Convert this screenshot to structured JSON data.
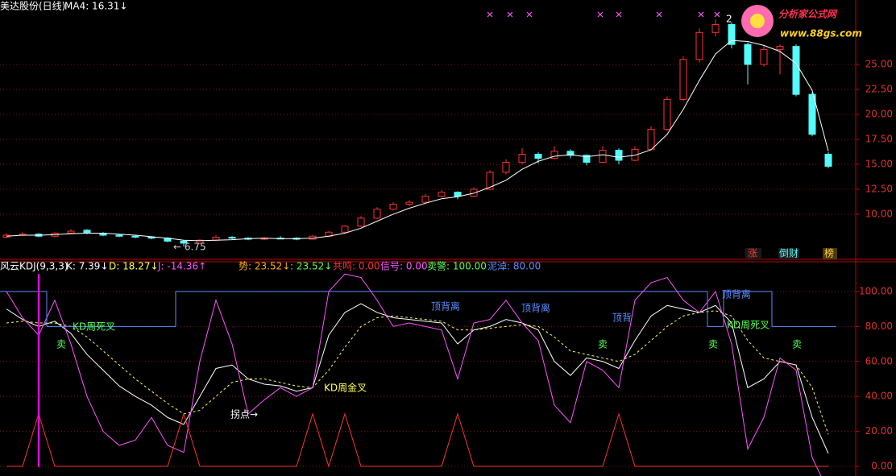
{
  "chart_data": [
    {
      "type": "candlestick",
      "title": "美达股份(日线)",
      "header_labels": [
        "MA4: 16.31↓"
      ],
      "up_color": "#ff3232",
      "down_color": "#54fcfc",
      "ma_color": "#ffffff",
      "ylim": [
        5.48,
        31.45
      ],
      "yticks": [
        {
          "value": 10,
          "label": "10.00"
        },
        {
          "value": 12.5,
          "label": "12.50"
        },
        {
          "value": 15,
          "label": "15.00"
        },
        {
          "value": 17.5,
          "label": "17.50"
        },
        {
          "value": 20,
          "label": "20.00"
        },
        {
          "value": 22.5,
          "label": "22.50"
        },
        {
          "value": 25,
          "label": "25.00"
        }
      ],
      "grid": true,
      "ohlc": [
        [
          7.7,
          8.1,
          7.6,
          7.9
        ],
        [
          7.9,
          8.2,
          7.8,
          8.0
        ],
        [
          8.0,
          8.1,
          7.7,
          7.8
        ],
        [
          7.8,
          8.2,
          7.7,
          8.1
        ],
        [
          8.1,
          8.5,
          8.0,
          8.3
        ],
        [
          8.4,
          8.5,
          8.0,
          8.1
        ],
        [
          8.1,
          8.2,
          7.8,
          7.9
        ],
        [
          7.9,
          8.0,
          7.7,
          7.8
        ],
        [
          7.8,
          7.9,
          7.6,
          7.7
        ],
        [
          7.7,
          7.8,
          7.5,
          7.6
        ],
        [
          7.6,
          7.7,
          7.2,
          7.3
        ],
        [
          7.3,
          7.4,
          6.75,
          7.1
        ],
        [
          7.1,
          7.5,
          7.0,
          7.4
        ],
        [
          7.4,
          7.9,
          7.3,
          7.7
        ],
        [
          7.7,
          7.8,
          7.5,
          7.6
        ],
        [
          7.6,
          7.7,
          7.4,
          7.5
        ],
        [
          7.5,
          7.7,
          7.4,
          7.6
        ],
        [
          7.6,
          7.8,
          7.5,
          7.55
        ],
        [
          7.6,
          7.7,
          7.4,
          7.5
        ],
        [
          7.5,
          7.9,
          7.5,
          7.8
        ],
        [
          7.8,
          8.3,
          7.7,
          8.2
        ],
        [
          8.2,
          8.9,
          8.1,
          8.8
        ],
        [
          8.8,
          9.8,
          8.7,
          9.6
        ],
        [
          9.6,
          10.7,
          9.5,
          10.5
        ],
        [
          10.5,
          11.2,
          10.4,
          11.0
        ],
        [
          11.0,
          11.4,
          10.8,
          11.2
        ],
        [
          11.2,
          12.0,
          11.0,
          11.8
        ],
        [
          11.8,
          12.4,
          11.7,
          12.2
        ],
        [
          12.2,
          12.3,
          11.5,
          11.8
        ],
        [
          11.8,
          12.7,
          11.7,
          12.5
        ],
        [
          12.5,
          14.4,
          12.4,
          14.2
        ],
        [
          14.2,
          15.5,
          14.0,
          15.2
        ],
        [
          15.2,
          16.6,
          15.0,
          16.0
        ],
        [
          16.0,
          16.2,
          15.1,
          15.6
        ],
        [
          15.6,
          16.8,
          15.5,
          16.3
        ],
        [
          16.3,
          16.5,
          15.6,
          15.9
        ],
        [
          15.9,
          16.0,
          14.9,
          15.2
        ],
        [
          15.2,
          16.8,
          15.1,
          16.4
        ],
        [
          16.4,
          16.6,
          15.0,
          15.4
        ],
        [
          15.4,
          16.8,
          15.3,
          16.5
        ],
        [
          16.5,
          18.8,
          16.4,
          18.5
        ],
        [
          18.5,
          21.8,
          18.3,
          21.5
        ],
        [
          21.5,
          25.8,
          21.3,
          25.5
        ],
        [
          25.5,
          28.6,
          25.2,
          28.2
        ],
        [
          28.2,
          29.5,
          27.8,
          29.0
        ],
        [
          29.0,
          29.2,
          26.6,
          27.0
        ],
        [
          27.0,
          27.2,
          23.0,
          25.0
        ],
        [
          25.0,
          26.9,
          24.8,
          26.5
        ],
        [
          26.5,
          27.0,
          24.0,
          26.8
        ],
        [
          26.8,
          27.0,
          21.8,
          22.0
        ],
        [
          22.0,
          22.2,
          17.8,
          18.0
        ],
        [
          16.0,
          16.2,
          14.6,
          14.8
        ]
      ],
      "ma": [
        7.8,
        7.9,
        7.9,
        7.95,
        8.05,
        8.1,
        8.1,
        8.0,
        7.9,
        7.75,
        7.6,
        7.4,
        7.35,
        7.4,
        7.45,
        7.55,
        7.6,
        7.55,
        7.55,
        7.6,
        7.8,
        8.1,
        8.6,
        9.3,
        10.0,
        10.6,
        11.1,
        11.55,
        11.75,
        12.1,
        12.7,
        13.4,
        14.5,
        15.3,
        15.8,
        15.95,
        15.75,
        15.95,
        15.7,
        15.9,
        16.45,
        18.0,
        20.5,
        23.4,
        26.05,
        27.4,
        27.3,
        26.9,
        26.3,
        25.1,
        22.4,
        16.31
      ],
      "annotations": [
        "← 6.75",
        "2",
        "涨",
        "倒财",
        "榜"
      ]
    },
    {
      "type": "line",
      "title": "风云KDJ(9,3,3)",
      "header_labels": [
        {
          "text": "K: 7.39↓",
          "color": "#ffffff"
        },
        {
          "text": "D: 18.27↓",
          "color": "#ffff54"
        },
        {
          "text": "J: -14.36↑",
          "color": "#ff54ff"
        },
        {
          "text": "势: 23.52↓",
          "color": "#ffb000"
        },
        {
          "text": ": 23.52↓",
          "color": "#54ff54"
        },
        {
          "text": "共鸣: 0.00",
          "color": "#ff3232"
        },
        {
          "text": "信号: 0.00",
          "color": "#ff54ff"
        },
        {
          "text": "卖警: 100.00",
          "color": "#54ff54"
        },
        {
          "text": "泥淖: 80.00",
          "color": "#5a8cff"
        }
      ],
      "ylim": [
        -5.5,
        117
      ],
      "yticks": [
        {
          "value": 0,
          "label": "0.00"
        },
        {
          "value": 20,
          "label": "20.00"
        },
        {
          "value": 40,
          "label": "40.00"
        },
        {
          "value": 60,
          "label": "60.00"
        },
        {
          "value": 80,
          "label": "80.00"
        },
        {
          "value": 100,
          "label": "100.00"
        }
      ],
      "grid": true,
      "series": [
        {
          "color": "#ffffff",
          "style": "solid",
          "values": [
            90,
            84,
            80,
            83,
            76,
            64,
            55,
            46,
            40,
            35,
            28,
            24,
            40,
            56,
            58,
            50,
            47,
            46,
            43,
            45,
            75,
            88,
            93,
            88,
            85,
            84,
            83,
            82,
            70,
            78,
            80,
            84,
            82,
            78,
            60,
            52,
            62,
            60,
            56,
            72,
            86,
            92,
            90,
            88,
            92,
            82,
            45,
            50,
            60,
            58,
            28,
            7.39
          ]
        },
        {
          "color": "#ffff54",
          "style": "dashed",
          "values": [
            82,
            83,
            82,
            82,
            80,
            74,
            66,
            58,
            50,
            43,
            36,
            30,
            32,
            40,
            48,
            50,
            50,
            48,
            46,
            45,
            55,
            68,
            80,
            85,
            86,
            85,
            84,
            83,
            78,
            78,
            79,
            80,
            81,
            80,
            74,
            66,
            64,
            62,
            60,
            64,
            72,
            80,
            86,
            88,
            89,
            86,
            72,
            62,
            60,
            58,
            45,
            18.27
          ]
        },
        {
          "color": "#ff54ff",
          "style": "solid",
          "values": [
            100,
            85,
            75,
            95,
            70,
            40,
            20,
            12,
            15,
            28,
            12,
            8,
            60,
            95,
            70,
            30,
            38,
            45,
            40,
            45,
            100,
            110,
            108,
            95,
            80,
            82,
            80,
            78,
            50,
            82,
            84,
            95,
            82,
            72,
            35,
            25,
            60,
            55,
            45,
            95,
            105,
            108,
            95,
            88,
            100,
            70,
            10,
            28,
            62,
            55,
            5,
            -14.36
          ]
        },
        {
          "color": "#5a8cff",
          "style": "step",
          "values": [
            100,
            100,
            100,
            80,
            80,
            80,
            80,
            80,
            80,
            80,
            80,
            100,
            100,
            100,
            100,
            100,
            100,
            100,
            100,
            100,
            100,
            100,
            100,
            100,
            100,
            100,
            100,
            100,
            100,
            100,
            100,
            100,
            100,
            100,
            100,
            100,
            100,
            100,
            100,
            100,
            100,
            100,
            100,
            100,
            80,
            100,
            100,
            100,
            80,
            80,
            80,
            80
          ]
        },
        {
          "color": "#ff3232",
          "style": "solid",
          "values": [
            0,
            0,
            30,
            0,
            0,
            0,
            0,
            0,
            0,
            0,
            0,
            30,
            0,
            0,
            0,
            0,
            0,
            0,
            0,
            30,
            0,
            30,
            0,
            0,
            0,
            0,
            0,
            0,
            30,
            0,
            0,
            0,
            0,
            0,
            0,
            0,
            0,
            0,
            30,
            0,
            0,
            0,
            0,
            0,
            0,
            0,
            0,
            0,
            0,
            0,
            0,
            0
          ]
        }
      ],
      "annotations": [
        "KD周死叉",
        "KD周死叉",
        "卖",
        "卖",
        "卖",
        "卖",
        "顶背离",
        "顶背离",
        "顶背离",
        "顶背",
        "拐点→",
        "KD周金叉"
      ]
    }
  ],
  "logo": {
    "title": "分析家公式网",
    "url": "www.88gs.com"
  }
}
